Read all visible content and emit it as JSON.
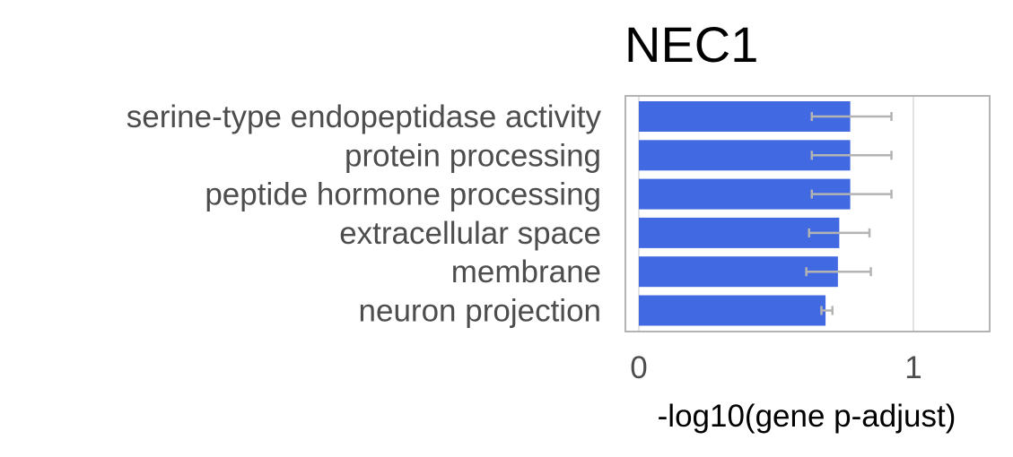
{
  "chart_data": {
    "type": "bar",
    "orientation": "horizontal",
    "title": "NEC1",
    "xlabel": "-log10(gene p-adjust)",
    "ylabel": "",
    "xlim": [
      -0.05,
      1.28
    ],
    "xticks": [
      0,
      1
    ],
    "grid": true,
    "legend": "none",
    "categories": [
      "serine-type endopeptidase activity",
      "protein processing",
      "peptide hormone processing",
      "extracellular space",
      "membrane",
      "neuron projection"
    ],
    "values": [
      0.77,
      0.77,
      0.77,
      0.73,
      0.725,
      0.68
    ],
    "error_low": [
      0.63,
      0.63,
      0.63,
      0.62,
      0.61,
      0.665
    ],
    "error_high": [
      0.92,
      0.92,
      0.92,
      0.84,
      0.845,
      0.705
    ],
    "colors": {
      "bar": "#4169e1",
      "error_bar": "#b3b3b3",
      "grid": "#d9d9d9",
      "panel_border": "#b3b3b3"
    }
  }
}
